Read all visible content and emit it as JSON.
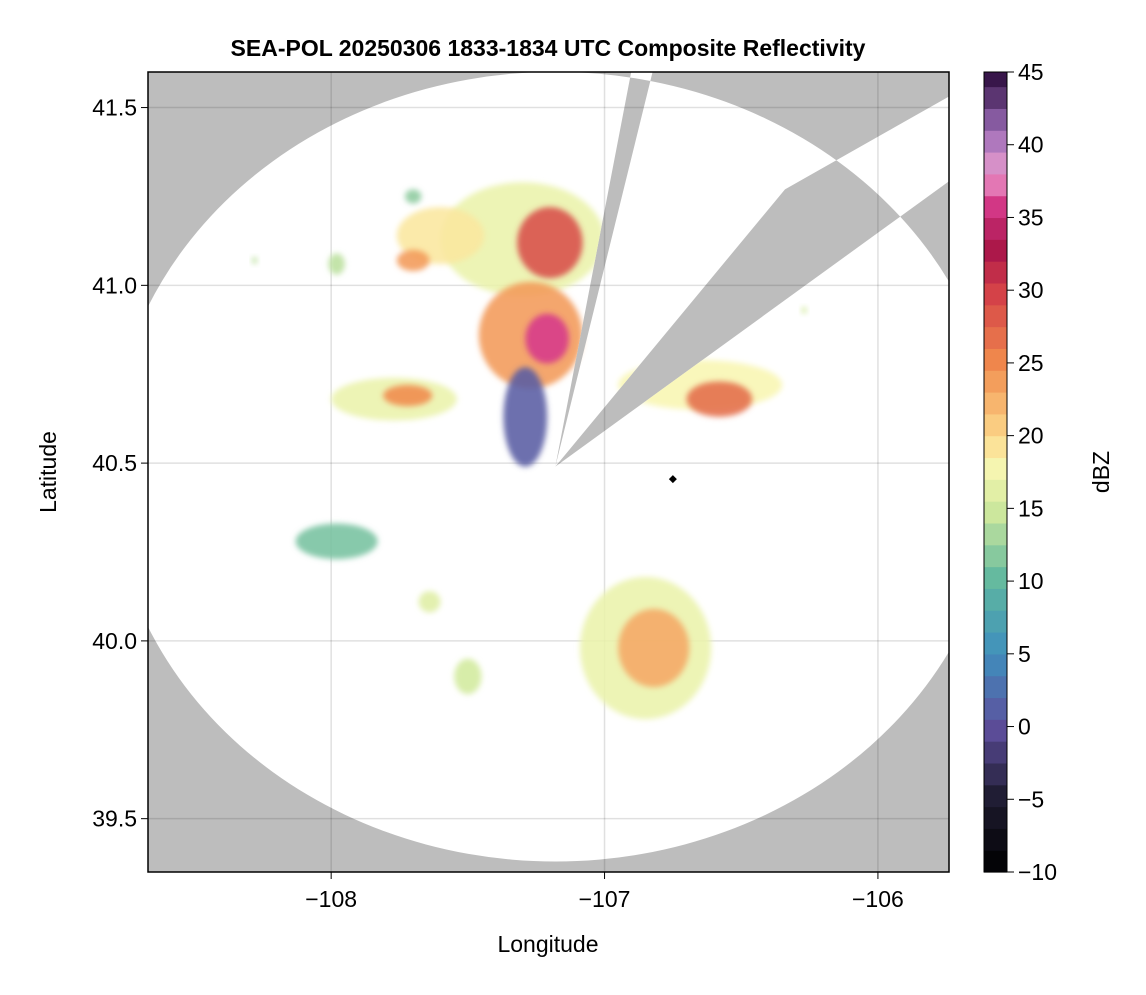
{
  "chart_data": {
    "type": "heatmap",
    "title": "SEA-POL 20250306 1833-1834 UTC Composite Reflectivity",
    "xlabel": "Longitude",
    "ylabel": "Latitude",
    "xlim": [
      -108.67,
      -105.74
    ],
    "ylim": [
      39.35,
      41.6
    ],
    "xticks": [
      -108,
      -107,
      -106
    ],
    "yticks": [
      39.5,
      40.0,
      40.5,
      41.0,
      41.5
    ],
    "xtick_labels": [
      "−108",
      "−107",
      "−106"
    ],
    "ytick_labels": [
      "39.5",
      "40.0",
      "40.5",
      "41.0",
      "41.5"
    ],
    "grid": true,
    "background_color": "#bdbdbd",
    "coverage_color": "#ffffff",
    "radar": {
      "lon": -107.18,
      "lat": 40.49,
      "range_deg_lon": 1.63,
      "range_deg_lat": 1.11,
      "blocked_sectors": [
        {
          "from_lon": -106.85,
          "from_lat": 41.52,
          "to_lon": -107.03,
          "to_lat": 41.09
        },
        {
          "from_lon": -106.05,
          "from_lat": 41.12,
          "to_lon": -106.9,
          "to_lat": 40.75
        }
      ]
    },
    "marker": {
      "lon": -106.75,
      "lat": 40.455,
      "symbol": "diamond",
      "color": "#000000"
    },
    "colorbar": {
      "label": "dBZ",
      "vmin": -10,
      "vmax": 45,
      "ticks": [
        -10,
        -5,
        0,
        5,
        10,
        15,
        20,
        25,
        30,
        35,
        40,
        45
      ],
      "tick_labels": [
        "−10",
        "−5",
        "0",
        "5",
        "10",
        "15",
        "20",
        "25",
        "30",
        "35",
        "40",
        "45"
      ],
      "colormap": "spectral",
      "stops": [
        {
          "v": -10,
          "color": "#000000"
        },
        {
          "v": -5,
          "color": "#1d1a2e"
        },
        {
          "v": 0,
          "color": "#5e4f9d"
        },
        {
          "v": 5,
          "color": "#3f8fbd"
        },
        {
          "v": 10,
          "color": "#5fb79f"
        },
        {
          "v": 15,
          "color": "#d2ea9d"
        },
        {
          "v": 18,
          "color": "#f8f6b2"
        },
        {
          "v": 20,
          "color": "#fcd88a"
        },
        {
          "v": 25,
          "color": "#f08a4c"
        },
        {
          "v": 30,
          "color": "#d23e48"
        },
        {
          "v": 33,
          "color": "#a8144a"
        },
        {
          "v": 36,
          "color": "#d63a8a"
        },
        {
          "v": 38,
          "color": "#ea9ccd"
        },
        {
          "v": 41,
          "color": "#9b6cb8"
        },
        {
          "v": 45,
          "color": "#2a0a3a"
        }
      ]
    },
    "echoes": [
      {
        "name": "north-complex",
        "lon": -107.3,
        "lat": 41.13,
        "rx": 0.3,
        "ry": 0.16,
        "dbz": 17
      },
      {
        "name": "north-complex-core",
        "lon": -107.2,
        "lat": 41.12,
        "rx": 0.12,
        "ry": 0.1,
        "dbz": 29
      },
      {
        "name": "north-west-lobe",
        "lon": -107.6,
        "lat": 41.14,
        "rx": 0.16,
        "ry": 0.08,
        "dbz": 19
      },
      {
        "name": "north-west-lobe-core",
        "lon": -107.7,
        "lat": 41.07,
        "rx": 0.06,
        "ry": 0.03,
        "dbz": 24
      },
      {
        "name": "central-core-region",
        "lon": -107.27,
        "lat": 40.86,
        "rx": 0.19,
        "ry": 0.15,
        "dbz": 24
      },
      {
        "name": "central-core",
        "lon": -107.21,
        "lat": 40.85,
        "rx": 0.08,
        "ry": 0.07,
        "dbz": 36
      },
      {
        "name": "south-tail",
        "lon": -107.29,
        "lat": 40.63,
        "rx": 0.08,
        "ry": 0.14,
        "dbz": 1
      },
      {
        "name": "west-cell",
        "lon": -107.77,
        "lat": 40.68,
        "rx": 0.23,
        "ry": 0.06,
        "dbz": 17
      },
      {
        "name": "west-cell-core",
        "lon": -107.72,
        "lat": 40.69,
        "rx": 0.09,
        "ry": 0.03,
        "dbz": 25
      },
      {
        "name": "east-band",
        "lon": -106.65,
        "lat": 40.72,
        "rx": 0.3,
        "ry": 0.07,
        "dbz": 18
      },
      {
        "name": "east-band-core",
        "lon": -106.58,
        "lat": 40.68,
        "rx": 0.12,
        "ry": 0.05,
        "dbz": 27
      },
      {
        "name": "southwest-cell",
        "lon": -107.98,
        "lat": 40.28,
        "rx": 0.15,
        "ry": 0.05,
        "dbz": 11
      },
      {
        "name": "small-cell-1",
        "lon": -107.64,
        "lat": 40.11,
        "rx": 0.04,
        "ry": 0.03,
        "dbz": 16
      },
      {
        "name": "small-cell-2",
        "lon": -107.5,
        "lat": 39.9,
        "rx": 0.05,
        "ry": 0.05,
        "dbz": 15
      },
      {
        "name": "south-complex",
        "lon": -106.85,
        "lat": 39.98,
        "rx": 0.24,
        "ry": 0.2,
        "dbz": 17
      },
      {
        "name": "south-complex-core",
        "lon": -106.82,
        "lat": 39.98,
        "rx": 0.13,
        "ry": 0.11,
        "dbz": 23
      },
      {
        "name": "north-small-1",
        "lon": -107.7,
        "lat": 41.25,
        "rx": 0.03,
        "ry": 0.02,
        "dbz": 12
      },
      {
        "name": "north-small-2",
        "lon": -107.98,
        "lat": 41.06,
        "rx": 0.03,
        "ry": 0.03,
        "dbz": 14
      },
      {
        "name": "north-small-3",
        "lon": -108.28,
        "lat": 41.07,
        "rx": 0.01,
        "ry": 0.01,
        "dbz": 14
      },
      {
        "name": "northeast-speck",
        "lon": -106.27,
        "lat": 40.93,
        "rx": 0.01,
        "ry": 0.01,
        "dbz": 15
      }
    ]
  }
}
